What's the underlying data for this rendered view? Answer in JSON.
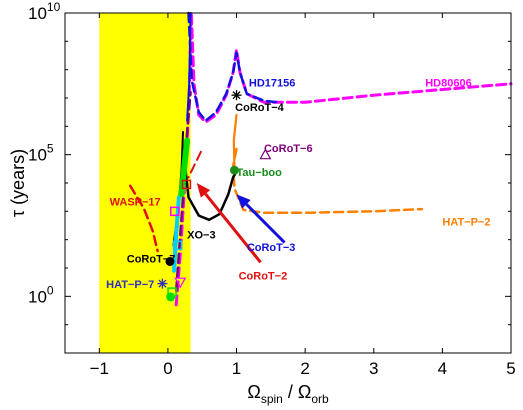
{
  "chart_data": {
    "type": "line",
    "xlabel": "",
    "ylabel": "",
    "xlim": [
      -1.5,
      5
    ],
    "ylim_log10": [
      -2,
      10
    ],
    "y_scale": "log",
    "grid": false,
    "legend": "none",
    "xtick_values": [
      -1,
      0,
      1,
      2,
      3,
      4,
      5
    ],
    "xtick_labels": [
      "−1",
      "0",
      "1",
      "2",
      "3",
      "4",
      "5"
    ],
    "ytick_values": [
      1,
      100000,
      10000000000
    ],
    "ytick_bases": [
      "10",
      "10",
      "10"
    ],
    "ytick_exponents": [
      "0",
      "5",
      "10"
    ],
    "axis_label_y": {
      "symbol": "τ",
      "text": " (years)"
    },
    "axis_label_x": {
      "num": "Ω",
      "num_sub": "spin",
      "sep": " / ",
      "den": "Ω",
      "den_sub": "orb"
    },
    "shaded_region": {
      "x": [
        -1,
        0.33
      ],
      "color": "#ffff00"
    },
    "colors": {
      "magenta": "#ff00ff",
      "blue": "#1010e0",
      "orange": "#ff7f00",
      "red": "#e01010",
      "black": "#000000",
      "green": "#1a8c1a",
      "purple": "#7a007a",
      "cyan": "#00d0ff",
      "lime": "#00e000",
      "indigo": "#3030c0"
    },
    "series": [
      {
        "color": "magenta",
        "dash": true,
        "width": 3,
        "points": [
          [
            0.12,
            -0.3
          ],
          [
            0.18,
            1.5
          ],
          [
            0.22,
            3
          ],
          [
            0.27,
            5
          ],
          [
            0.31,
            7
          ],
          [
            0.34,
            10
          ],
          [
            0.38,
            7.5
          ],
          [
            0.45,
            6.4
          ],
          [
            0.55,
            6.15
          ],
          [
            0.7,
            6.4
          ],
          [
            0.85,
            7.1
          ],
          [
            0.95,
            7.9
          ],
          [
            1.0,
            8.7
          ],
          [
            1.05,
            7.9
          ],
          [
            1.15,
            7.15
          ],
          [
            1.4,
            6.85
          ],
          [
            2,
            6.85
          ],
          [
            3,
            7.1
          ],
          [
            4,
            7.3
          ],
          [
            5,
            7.5
          ]
        ]
      },
      {
        "color": "blue",
        "dash": true,
        "width": 2.5,
        "points": [
          [
            0.3,
            10
          ],
          [
            0.35,
            7.6
          ],
          [
            0.45,
            6.5
          ],
          [
            0.55,
            6.2
          ],
          [
            0.7,
            6.5
          ],
          [
            0.85,
            7.15
          ],
          [
            0.95,
            7.9
          ],
          [
            1.0,
            8.6
          ],
          [
            1.05,
            7.9
          ],
          [
            1.15,
            7.15
          ],
          [
            1.4,
            6.9
          ],
          [
            1.6,
            6.85
          ]
        ]
      },
      {
        "color": "orange",
        "dash": true,
        "width": 2.5,
        "points": [
          [
            1.0,
            5.2
          ],
          [
            0.95,
            4.6
          ],
          [
            0.97,
            3.8
          ],
          [
            1.1,
            3.05
          ],
          [
            1.4,
            2.95
          ],
          [
            2,
            2.95
          ],
          [
            3,
            3.0
          ],
          [
            3.7,
            3.08
          ]
        ]
      },
      {
        "color": "orange",
        "dash": false,
        "width": 2.2,
        "points": [
          [
            1.0,
            6.4
          ],
          [
            0.96,
            5.5
          ],
          [
            0.97,
            4.5
          ]
        ]
      },
      {
        "color": "black",
        "dash": false,
        "width": 2.5,
        "points": [
          [
            0.22,
            5.3
          ],
          [
            0.3,
            3.5
          ],
          [
            0.45,
            2.85
          ],
          [
            0.6,
            2.7
          ],
          [
            0.75,
            2.9
          ],
          [
            0.88,
            3.6
          ],
          [
            0.95,
            4.2
          ],
          [
            1.0,
            4.4
          ]
        ]
      },
      {
        "color": "black",
        "dash": false,
        "width": 2,
        "points": [
          [
            0.22,
            5.8
          ],
          [
            0.2,
            4.5
          ],
          [
            0.15,
            3
          ],
          [
            0.08,
            1.8
          ]
        ]
      },
      {
        "color": "red",
        "dash": true,
        "width": 2.5,
        "points": [
          [
            -0.55,
            3.9
          ],
          [
            -0.35,
            3.1
          ],
          [
            -0.22,
            2.3
          ],
          [
            -0.15,
            1.6
          ]
        ]
      },
      {
        "color": "red",
        "dash": true,
        "width": 2,
        "points": [
          [
            0.48,
            5.1
          ],
          [
            0.38,
            4.6
          ],
          [
            0.3,
            4.2
          ]
        ]
      },
      {
        "color": "purple",
        "dash": true,
        "width": 2.5,
        "points": [
          [
            0.12,
            0.2
          ],
          [
            0.16,
            1.5
          ],
          [
            0.22,
            3.5
          ],
          [
            0.27,
            5.5
          ],
          [
            0.33,
            7.2
          ]
        ]
      },
      {
        "color": "blue",
        "dash": false,
        "width": 2,
        "points": [
          [
            0.28,
            6.2
          ],
          [
            0.31,
            7.5
          ],
          [
            0.33,
            10
          ]
        ]
      },
      {
        "color": "cyan",
        "dash": false,
        "width": 4,
        "points": [
          [
            0.09,
            0.9
          ],
          [
            0.12,
            2.2
          ],
          [
            0.16,
            3.5
          ]
        ]
      },
      {
        "color": "lime",
        "dash": false,
        "width": 6,
        "points": [
          [
            0.2,
            3.6
          ],
          [
            0.24,
            4.6
          ],
          [
            0.28,
            5.5
          ]
        ]
      }
    ],
    "planets": [
      {
        "name": "HD17156",
        "label_color": "blue",
        "label_xy": [
          1.18,
          7.4
        ],
        "marker": "none",
        "marker_xy": [
          1,
          7
        ]
      },
      {
        "name": "HD80606",
        "label_color": "magenta",
        "label_xy": [
          3.75,
          7.4
        ],
        "marker": "none",
        "marker_xy": [
          1,
          7
        ]
      },
      {
        "name": "CoRoT−4",
        "label_color": "black",
        "label_xy": [
          0.98,
          6.55
        ],
        "marker": "asterisk",
        "marker_color": "black",
        "marker_xy": [
          1.0,
          7.1
        ]
      },
      {
        "name": "CoRoT−6",
        "label_color": "purple",
        "label_xy": [
          1.4,
          5.1
        ],
        "marker": "triangle",
        "marker_color": "purple",
        "marker_xy": [
          1.42,
          5.0
        ]
      },
      {
        "name": "Tau−boo",
        "label_color": "green",
        "label_xy": [
          1.0,
          4.25
        ],
        "marker": "dot",
        "marker_color": "green",
        "marker_xy": [
          0.97,
          4.45
        ]
      },
      {
        "name": "WASP−17",
        "label_color": "red",
        "label_xy": [
          -0.85,
          3.2
        ],
        "marker": "none",
        "marker_xy": [
          0,
          0
        ]
      },
      {
        "name": "XO−3",
        "label_color": "black",
        "label_xy": [
          0.28,
          2.05
        ],
        "marker": "square",
        "marker_color": "red",
        "marker_xy": [
          0.27,
          3.95
        ]
      },
      {
        "name": "CoRoT−3",
        "label_color": "blue",
        "label_xy": [
          1.15,
          1.6
        ],
        "marker": "none",
        "marker_xy": [
          0,
          0
        ]
      },
      {
        "name": "HAT−P−2",
        "label_color": "orange",
        "label_xy": [
          4.0,
          2.5
        ],
        "marker": "none",
        "marker_xy": [
          0,
          0
        ]
      },
      {
        "name": "CoRoT−7",
        "label_color": "black",
        "label_xy": [
          -0.6,
          1.2
        ],
        "marker": "dot",
        "marker_color": "black",
        "marker_xy": [
          0.03,
          1.23
        ]
      },
      {
        "name": "CoRoT−2",
        "label_color": "red",
        "label_xy": [
          1.03,
          0.6
        ],
        "marker": "none",
        "marker_xy": [
          0,
          0
        ]
      },
      {
        "name": "HAT−P−7",
        "label_color": "indigo",
        "label_xy": [
          -0.9,
          0.3
        ],
        "marker": "asterisk",
        "marker_color": "indigo",
        "marker_xy": [
          -0.08,
          0.45
        ]
      }
    ],
    "extra_markers": [
      {
        "marker": "square",
        "color": "magenta",
        "xy": [
          0.1,
          3.0
        ]
      },
      {
        "marker": "triangle-down",
        "color": "magenta",
        "xy": [
          0.18,
          0.5
        ]
      },
      {
        "marker": "square",
        "color": "lime",
        "xy": [
          0.06,
          0.15
        ]
      },
      {
        "marker": "dot",
        "color": "lime",
        "xy": [
          0.04,
          -0.02
        ]
      },
      {
        "marker": "square",
        "color": "cyan",
        "xy": [
          0.14,
          1.8
        ]
      }
    ],
    "arrows": [
      {
        "color": "blue",
        "from": [
          1.7,
          1.9
        ],
        "to": [
          1.0,
          3.6
        ]
      },
      {
        "color": "red",
        "from": [
          1.35,
          1.2
        ],
        "to": [
          0.42,
          4.0
        ]
      }
    ]
  }
}
